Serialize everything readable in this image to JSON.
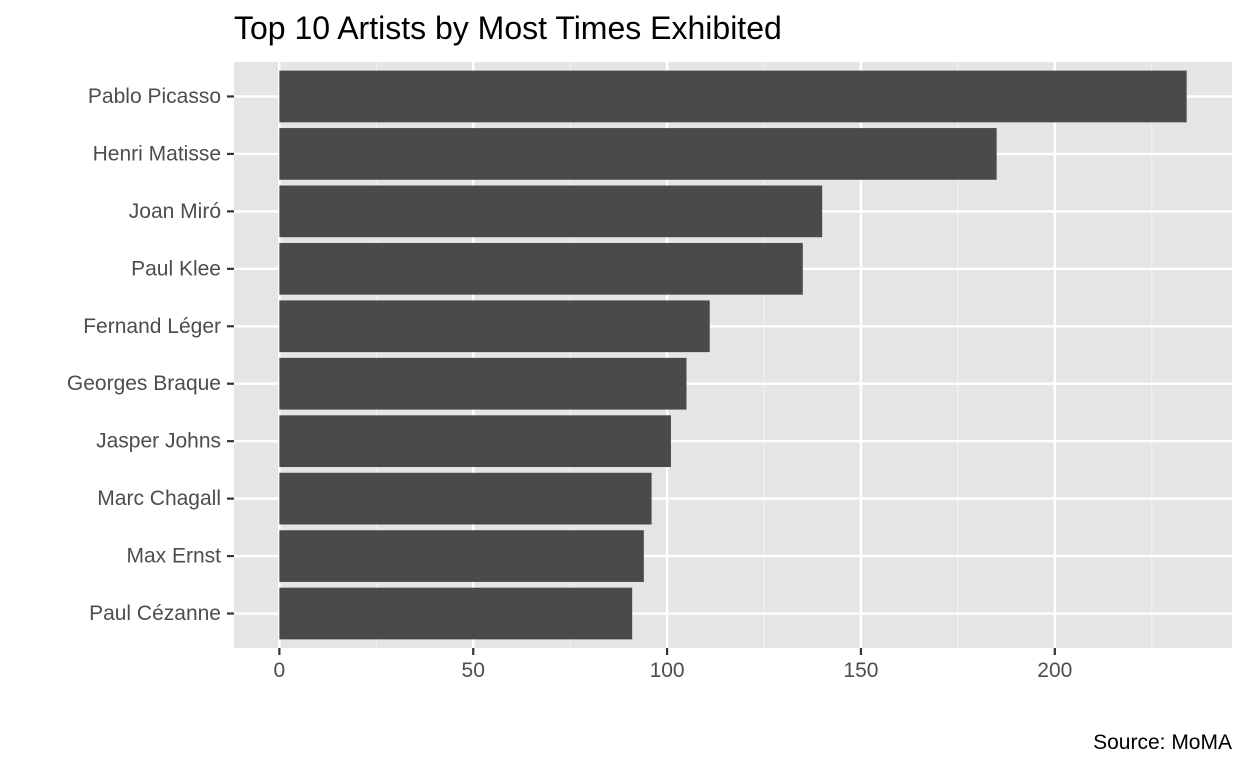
{
  "chart_data": {
    "type": "bar",
    "orientation": "horizontal",
    "title": "Top 10 Artists by Most Times Exhibited",
    "caption": "Source: MoMA",
    "xlabel": "",
    "ylabel": "",
    "categories": [
      "Pablo Picasso",
      "Henri Matisse",
      "Joan Miró",
      "Paul Klee",
      "Fernand Léger",
      "Georges Braque",
      "Jasper Johns",
      "Marc Chagall",
      "Max Ernst",
      "Paul Cézanne"
    ],
    "values": [
      234,
      185,
      140,
      135,
      111,
      105,
      101,
      96,
      94,
      91
    ],
    "xlim": [
      -11.7,
      245.7
    ],
    "x_ticks": [
      0,
      50,
      100,
      150,
      200
    ],
    "x_tick_labels": [
      "0",
      "50",
      "100",
      "150",
      "200"
    ],
    "grid": true,
    "legend": "none",
    "colors": {
      "bar": "#4a4a4a",
      "panel_background": "#e5e5e5",
      "grid_major": "#ffffff",
      "grid_minor": "#f2f2f2",
      "tick_label": "#4d4d4d",
      "tick_mark": "#333333",
      "title": "#000000"
    }
  }
}
